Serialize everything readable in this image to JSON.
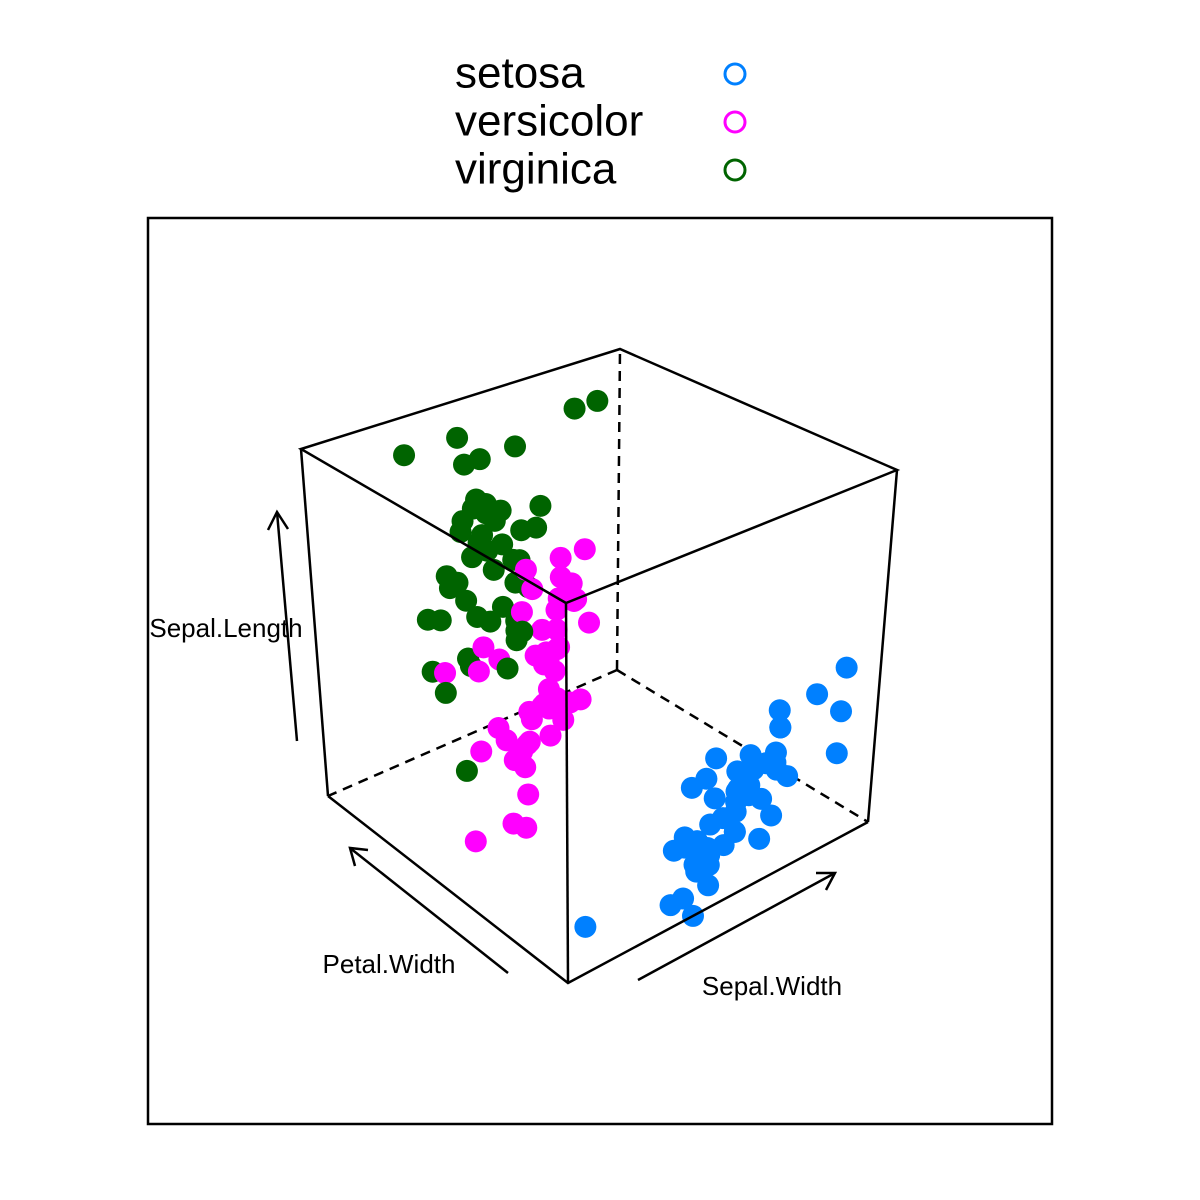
{
  "chart_data": {
    "type": "scatter3d",
    "xlabel": "Sepal.Width",
    "ylabel": "Petal.Width",
    "zlabel": "Sepal.Length",
    "xlim": [
      2.0,
      4.4
    ],
    "ylim": [
      0.1,
      2.5
    ],
    "zlim": [
      4.3,
      7.9
    ],
    "legend": "top",
    "series": [
      {
        "name": "setosa",
        "color": "#0080ff",
        "x": [
          3.5,
          3.0,
          3.2,
          3.1,
          3.6,
          3.9,
          3.4,
          3.4,
          2.9,
          3.1,
          3.7,
          3.4,
          3.0,
          3.0,
          4.0,
          4.4,
          3.9,
          3.5,
          3.8,
          3.8,
          3.4,
          3.7,
          3.6,
          3.3,
          3.4,
          3.0,
          3.4,
          3.5,
          3.4,
          3.2,
          3.1,
          3.4,
          4.1,
          4.2,
          3.1,
          3.2,
          3.5,
          3.6,
          3.0,
          3.4,
          3.5,
          2.3,
          3.2,
          3.5,
          3.8,
          3.0,
          3.8,
          3.2,
          3.7,
          3.3
        ],
        "y": [
          0.2,
          0.2,
          0.2,
          0.2,
          0.2,
          0.4,
          0.3,
          0.2,
          0.2,
          0.1,
          0.2,
          0.2,
          0.1,
          0.1,
          0.2,
          0.4,
          0.4,
          0.3,
          0.3,
          0.3,
          0.2,
          0.4,
          0.2,
          0.5,
          0.2,
          0.2,
          0.4,
          0.2,
          0.2,
          0.2,
          0.2,
          0.4,
          0.1,
          0.2,
          0.2,
          0.2,
          0.2,
          0.1,
          0.2,
          0.2,
          0.3,
          0.3,
          0.2,
          0.6,
          0.4,
          0.3,
          0.2,
          0.2,
          0.2,
          0.2
        ],
        "z": [
          5.1,
          4.9,
          4.7,
          4.6,
          5.0,
          5.4,
          4.6,
          5.0,
          4.4,
          4.9,
          5.4,
          4.8,
          4.8,
          4.3,
          5.8,
          5.7,
          5.4,
          5.1,
          5.7,
          5.1,
          5.4,
          5.1,
          4.6,
          5.1,
          4.8,
          5.0,
          5.0,
          5.2,
          5.2,
          4.7,
          4.8,
          5.4,
          5.2,
          5.5,
          4.9,
          5.0,
          5.5,
          4.9,
          4.4,
          5.1,
          5.0,
          4.5,
          4.4,
          5.0,
          5.1,
          4.8,
          5.1,
          4.6,
          5.3,
          5.0
        ]
      },
      {
        "name": "versicolor",
        "color": "#ff00ff",
        "x": [
          3.2,
          3.2,
          3.1,
          2.3,
          2.8,
          2.8,
          3.3,
          2.4,
          2.9,
          2.7,
          2.0,
          3.0,
          2.2,
          2.9,
          2.9,
          3.1,
          3.0,
          2.7,
          2.2,
          2.5,
          3.2,
          2.8,
          2.5,
          2.8,
          2.9,
          3.0,
          2.8,
          3.0,
          2.9,
          2.6,
          2.4,
          2.4,
          2.7,
          2.7,
          3.0,
          3.4,
          3.1,
          2.3,
          3.0,
          2.5,
          2.6,
          3.0,
          2.6,
          2.3,
          2.7,
          3.0,
          2.9,
          2.9,
          2.5,
          2.8
        ],
        "y": [
          1.4,
          1.5,
          1.5,
          1.3,
          1.5,
          1.3,
          1.6,
          1.0,
          1.3,
          1.4,
          1.0,
          1.5,
          1.0,
          1.4,
          1.3,
          1.4,
          1.5,
          1.0,
          1.5,
          1.1,
          1.8,
          1.3,
          1.5,
          1.2,
          1.3,
          1.4,
          1.4,
          1.7,
          1.5,
          1.0,
          1.1,
          1.0,
          1.2,
          1.6,
          1.5,
          1.6,
          1.5,
          1.3,
          1.3,
          1.3,
          1.2,
          1.4,
          1.2,
          1.0,
          1.3,
          1.2,
          1.3,
          1.3,
          1.1,
          1.3
        ],
        "z": [
          7.0,
          6.4,
          6.9,
          5.5,
          6.5,
          5.7,
          6.3,
          4.9,
          6.6,
          5.2,
          5.0,
          5.9,
          6.0,
          6.1,
          5.6,
          6.7,
          5.6,
          5.8,
          6.2,
          5.6,
          5.9,
          6.1,
          6.3,
          6.1,
          6.4,
          6.6,
          6.8,
          6.7,
          6.0,
          5.7,
          5.5,
          5.5,
          5.8,
          6.0,
          5.4,
          6.0,
          6.7,
          6.3,
          5.6,
          5.5,
          5.5,
          6.1,
          5.8,
          5.0,
          5.6,
          5.7,
          5.7,
          6.2,
          5.1,
          5.7
        ]
      },
      {
        "name": "virginica",
        "color": "#006400",
        "x": [
          3.3,
          2.7,
          3.0,
          2.9,
          3.0,
          3.0,
          2.5,
          2.9,
          2.5,
          3.6,
          3.2,
          2.7,
          3.0,
          2.5,
          2.8,
          3.2,
          3.0,
          3.8,
          2.6,
          2.2,
          3.2,
          2.8,
          2.8,
          2.7,
          3.3,
          3.2,
          2.8,
          3.0,
          2.8,
          3.0,
          2.8,
          3.8,
          2.8,
          2.8,
          2.6,
          3.0,
          3.4,
          3.1,
          3.0,
          3.1,
          3.1,
          3.1,
          2.7,
          3.2,
          3.3,
          3.0,
          2.5,
          3.0,
          3.4,
          3.0
        ],
        "y": [
          2.5,
          1.9,
          2.1,
          1.8,
          2.2,
          2.1,
          1.7,
          1.8,
          1.8,
          2.5,
          2.0,
          1.9,
          2.1,
          2.0,
          2.4,
          2.3,
          1.8,
          2.2,
          2.3,
          1.5,
          2.3,
          2.0,
          2.0,
          1.8,
          2.1,
          1.8,
          1.8,
          1.8,
          2.1,
          1.6,
          1.9,
          2.0,
          2.2,
          1.5,
          1.4,
          2.3,
          2.4,
          1.8,
          1.8,
          2.1,
          2.4,
          2.3,
          1.9,
          2.3,
          2.5,
          2.3,
          1.9,
          2.0,
          2.3,
          1.8
        ],
        "z": [
          6.3,
          5.8,
          7.1,
          6.3,
          6.5,
          7.6,
          4.9,
          7.3,
          6.7,
          7.2,
          6.5,
          6.4,
          6.8,
          5.7,
          5.8,
          6.4,
          6.5,
          7.7,
          7.7,
          6.0,
          6.9,
          5.6,
          7.7,
          6.3,
          6.7,
          7.2,
          6.2,
          6.1,
          6.4,
          7.2,
          7.4,
          7.9,
          6.4,
          6.3,
          6.1,
          7.7,
          6.3,
          6.4,
          6.0,
          6.9,
          6.7,
          6.9,
          5.8,
          6.8,
          6.7,
          6.7,
          6.3,
          6.5,
          6.2,
          5.9
        ]
      }
    ]
  }
}
